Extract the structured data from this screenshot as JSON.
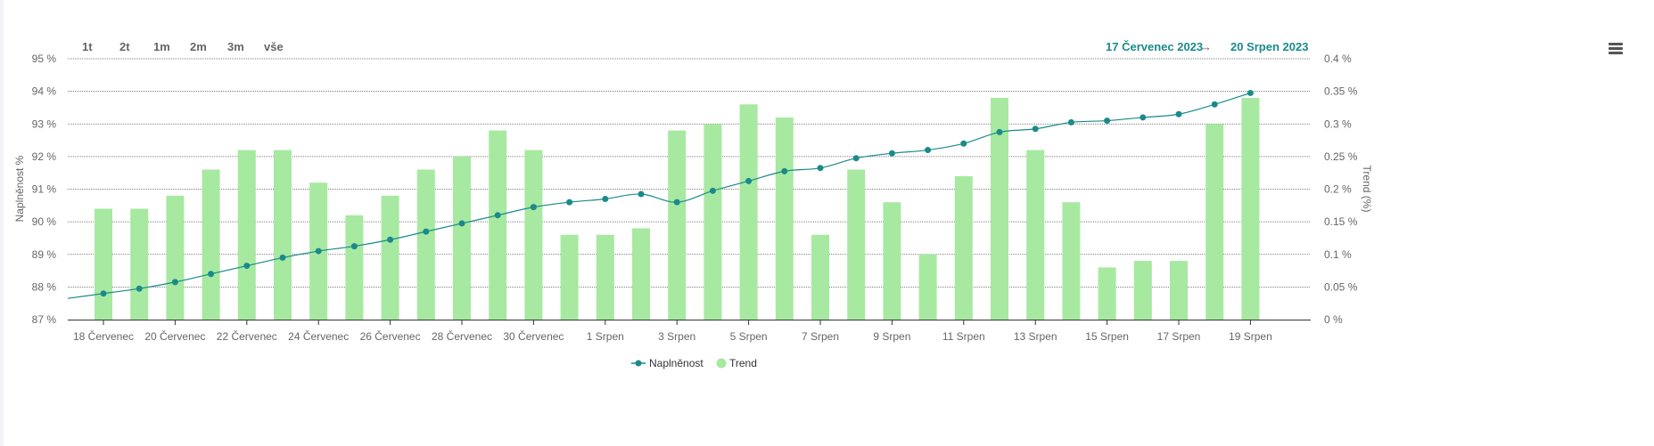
{
  "zoom_buttons": [
    "1t",
    "2t",
    "1m",
    "2m",
    "3m",
    "vše"
  ],
  "date_range": {
    "from": "17 Červenec 2023",
    "arrow": "→",
    "to": "20 Srpen 2023"
  },
  "colors": {
    "line": "#1b8a8a",
    "bar": "#a7e9a1",
    "grid": "#555555"
  },
  "chart_data": {
    "type": "bar",
    "categories": [
      "18 Červenec",
      "19 Červenec",
      "20 Červenec",
      "21 Červenec",
      "22 Červenec",
      "23 Červenec",
      "24 Červenec",
      "25 Červenec",
      "26 Červenec",
      "27 Červenec",
      "28 Červenec",
      "29 Červenec",
      "30 Červenec",
      "31 Červenec",
      "1 Srpen",
      "2 Srpen",
      "3 Srpen",
      "4 Srpen",
      "5 Srpen",
      "6 Srpen",
      "7 Srpen",
      "8 Srpen",
      "9 Srpen",
      "10 Srpen",
      "11 Srpen",
      "12 Srpen",
      "13 Srpen",
      "14 Srpen",
      "15 Srpen",
      "16 Srpen",
      "17 Srpen",
      "18 Srpen",
      "19 Srpen"
    ],
    "x_tick_labels": [
      "18 Červenec",
      "20 Červenec",
      "22 Červenec",
      "24 Červenec",
      "26 Červenec",
      "28 Červenec",
      "30 Červenec",
      "1 Srpen",
      "3 Srpen",
      "5 Srpen",
      "7 Srpen",
      "9 Srpen",
      "11 Srpen",
      "13 Srpen",
      "15 Srpen",
      "17 Srpen",
      "19 Srpen"
    ],
    "series": [
      {
        "name": "Naplněnost",
        "type": "line",
        "axis": "left",
        "start_value": 87.65,
        "values": [
          87.8,
          87.95,
          88.15,
          88.4,
          88.65,
          88.9,
          89.1,
          89.25,
          89.45,
          89.7,
          89.95,
          90.2,
          90.45,
          90.6,
          90.7,
          90.85,
          90.6,
          90.95,
          91.25,
          91.55,
          91.65,
          91.95,
          92.1,
          92.2,
          92.4,
          92.75,
          92.85,
          93.05,
          93.1,
          93.2,
          93.3,
          93.6,
          93.95
        ]
      },
      {
        "name": "Trend",
        "type": "bar",
        "axis": "right",
        "values": [
          0.17,
          0.17,
          0.19,
          0.23,
          0.26,
          0.26,
          0.21,
          0.16,
          0.19,
          0.23,
          0.25,
          0.29,
          0.26,
          0.13,
          0.13,
          0.14,
          0.29,
          0.3,
          0.33,
          0.31,
          0.13,
          0.23,
          0.18,
          0.1,
          0.22,
          0.34,
          0.26,
          0.18,
          0.08,
          0.09,
          0.09,
          0.3,
          0.34
        ]
      }
    ],
    "y_left": {
      "label": "Naplněnost %",
      "min": 87,
      "max": 95,
      "ticks": [
        "87 %",
        "88 %",
        "89 %",
        "90 %",
        "91 %",
        "92 %",
        "93 %",
        "94 %",
        "95 %"
      ]
    },
    "y_right": {
      "label": "Trend (%)",
      "min": 0,
      "max": 0.4,
      "ticks": [
        "0 %",
        "0.05 %",
        "0.1 %",
        "0.15 %",
        "0.2 %",
        "0.25 %",
        "0.3 %",
        "0.35 %",
        "0.4 %"
      ]
    },
    "grid": true,
    "legend": [
      "Naplněnost",
      "Trend"
    ],
    "legend_position": "bottom-center"
  }
}
